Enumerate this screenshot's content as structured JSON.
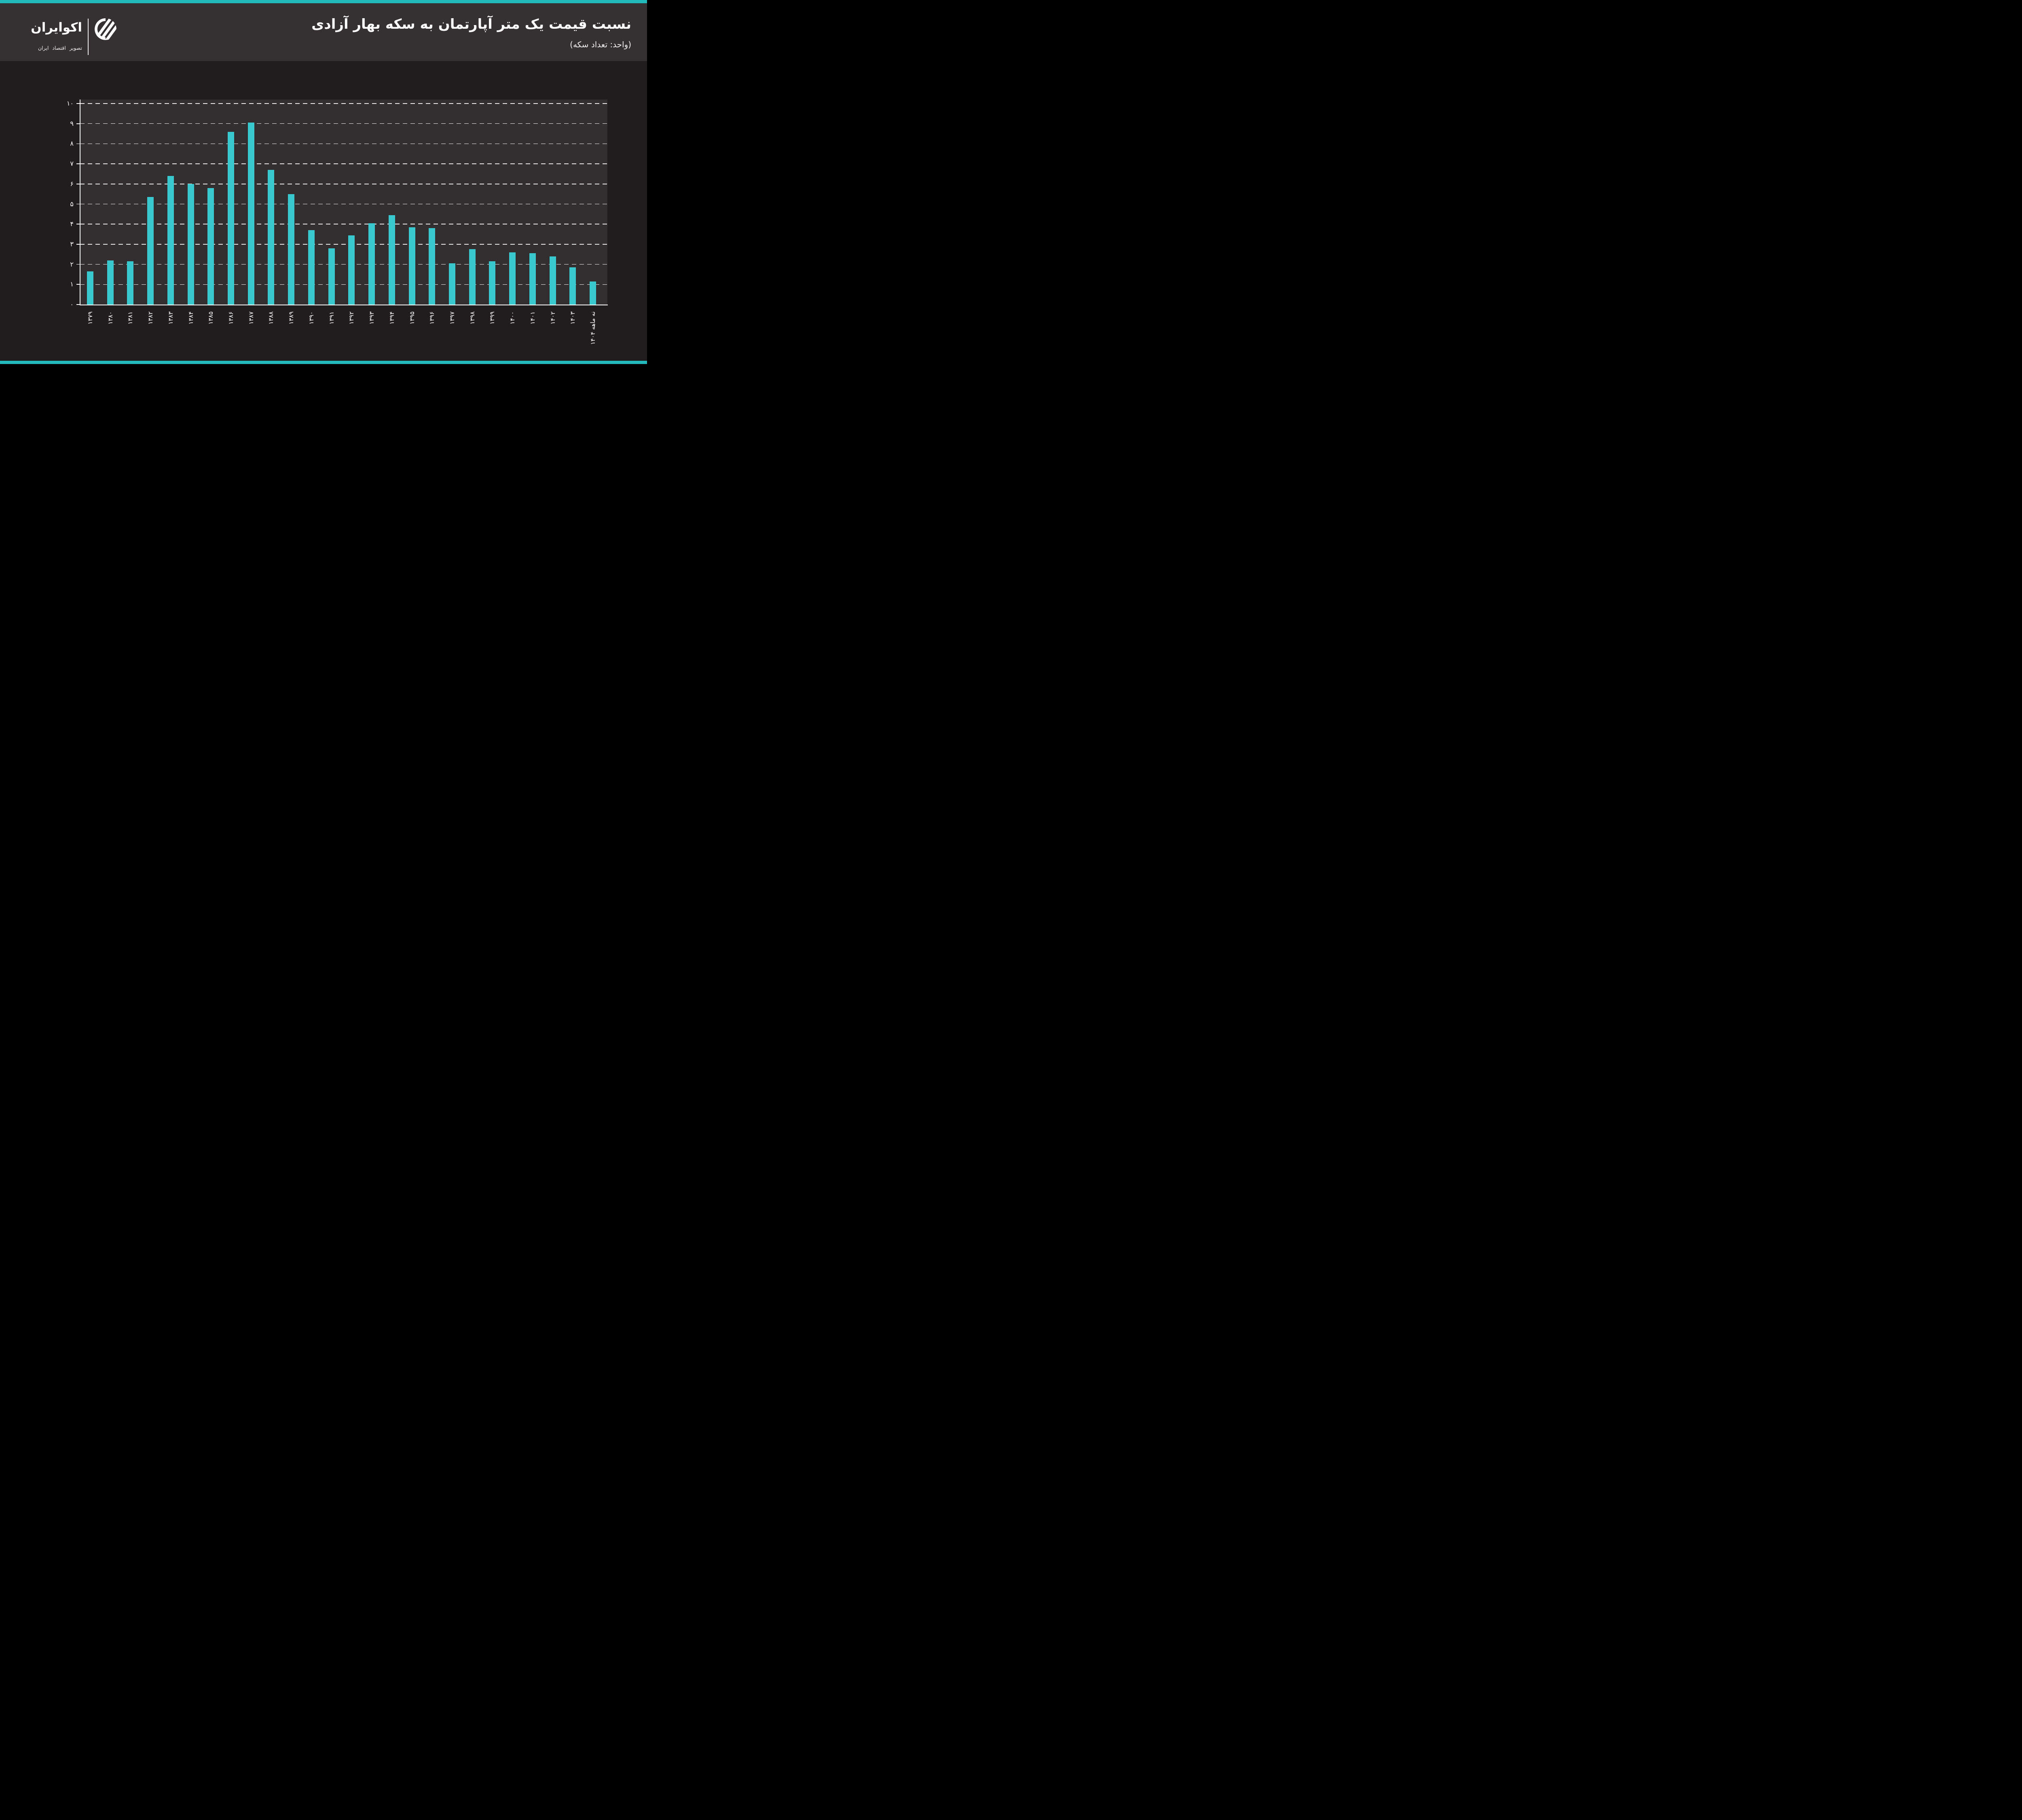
{
  "header": {
    "title": "نسبت قیمت یک متر آپارتمان به سکه بهار آزادی",
    "subtitle": "(واحد: تعداد سکه)",
    "logo": {
      "brand": "اکوایران",
      "tagline": "تصویر اقتصاد ایران"
    }
  },
  "colors": {
    "accent_teal": "#22BABA",
    "bar": "#38C8CD",
    "header_bg": "#353132",
    "body_bg": "#211D1E",
    "plot_bg": "#332F30",
    "text": "#FFFFFF"
  },
  "chart_data": {
    "type": "bar",
    "title": "نسبت قیمت یک متر آپارتمان به سکه بهار آزادی",
    "unit_label": "(واحد: تعداد سکه)",
    "xlabel": "",
    "ylabel": "",
    "ylim": [
      0,
      10
    ],
    "grid": "horizontal dashed white lines at each integer",
    "legend": "none",
    "bar_color": "#38C8CD",
    "y_ticks": [
      "۰",
      "۱",
      "۲",
      "۳",
      "۴",
      "۵",
      "۶",
      "۷",
      "۸",
      "۹",
      "۱۰"
    ],
    "categories": [
      "۱۳۷۹",
      "۱۳۸۰",
      "۱۳۸۱",
      "۱۳۸۲",
      "۱۳۸۳",
      "۱۳۸۴",
      "۱۳۸۵",
      "۱۳۸۶",
      "۱۳۸۷",
      "۱۳۸۸",
      "۱۳۸۹",
      "۱۳۹۰",
      "۱۳۹۱",
      "۱۳۹۲",
      "۱۳۹۳",
      "۱۳۹۴",
      "۱۳۹۵",
      "۱۳۹۶",
      "۱۳۹۷",
      "۱۳۹۸",
      "۱۳۹۹",
      "۱۴۰۰",
      "۱۴۰۱",
      "۱۴۰۲",
      "۱۴۰۳",
      "نه ماهه ۱۴۰۴"
    ],
    "values": [
      1.65,
      2.2,
      2.15,
      5.35,
      6.4,
      6.0,
      5.8,
      8.6,
      9.05,
      6.7,
      5.5,
      3.7,
      2.8,
      3.45,
      4.05,
      4.45,
      3.85,
      3.8,
      2.05,
      2.75,
      2.15,
      2.6,
      2.55,
      2.4,
      1.85,
      1.15
    ]
  }
}
